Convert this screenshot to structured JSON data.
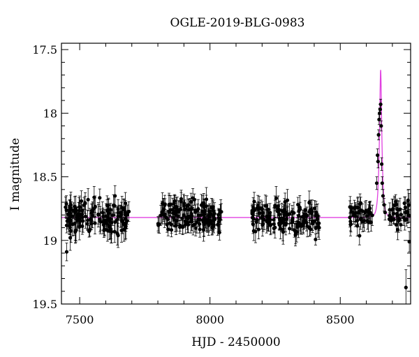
{
  "chart_data": {
    "type": "scatter",
    "title": "OGLE-2019-BLG-0983",
    "xlabel": "HJD - 2450000",
    "ylabel": "I magnitude",
    "xlim": [
      7430,
      8770
    ],
    "ylim": [
      19.5,
      17.45
    ],
    "y_inverted": true,
    "x_ticks": [
      7500,
      8000,
      8500
    ],
    "x_minor_step": 100,
    "y_ticks": [
      17.5,
      18,
      18.5,
      19,
      19.5
    ],
    "y_minor_step": 0.1,
    "grid": false,
    "colors": {
      "data": "#000000",
      "model": "#e040e0",
      "frame": "#000000"
    },
    "series": [
      {
        "kind": "photometry_with_errorbars",
        "seasons": [
          {
            "x_range": [
              7445,
              7690
            ],
            "mag_center": 18.82,
            "scatter": 0.12,
            "err": 0.07,
            "count": 150
          },
          {
            "x_range": [
              7800,
              8045
            ],
            "mag_center": 18.8,
            "scatter": 0.11,
            "err": 0.065,
            "count": 150
          },
          {
            "x_range": [
              8160,
              8420
            ],
            "mag_center": 18.82,
            "scatter": 0.11,
            "err": 0.065,
            "count": 150
          },
          {
            "x_range": [
              8530,
              8765
            ],
            "mag_center": 18.8,
            "scatter": 0.1,
            "err": 0.06,
            "count": 110
          }
        ],
        "peak_points": [
          {
            "x": 8640,
            "y": 18.55,
            "err": 0.05
          },
          {
            "x": 8643,
            "y": 18.33,
            "err": 0.05
          },
          {
            "x": 8645,
            "y": 18.38,
            "err": 0.05
          },
          {
            "x": 8647,
            "y": 18.17,
            "err": 0.04
          },
          {
            "x": 8649,
            "y": 18.05,
            "err": 0.04
          },
          {
            "x": 8651,
            "y": 18.0,
            "err": 0.04
          },
          {
            "x": 8653,
            "y": 17.97,
            "err": 0.04
          },
          {
            "x": 8655,
            "y": 17.93,
            "err": 0.04
          },
          {
            "x": 8657,
            "y": 18.1,
            "err": 0.04
          },
          {
            "x": 8659,
            "y": 18.4,
            "err": 0.05
          },
          {
            "x": 8661,
            "y": 18.55,
            "err": 0.05
          },
          {
            "x": 8664,
            "y": 18.65,
            "err": 0.05
          },
          {
            "x": 8668,
            "y": 18.72,
            "err": 0.05
          },
          {
            "x": 8672,
            "y": 18.78,
            "err": 0.06
          }
        ],
        "outliers": [
          {
            "x": 7450,
            "y": 19.09,
            "err": 0.07
          },
          {
            "x": 8752,
            "y": 19.37,
            "err": 0.14
          },
          {
            "x": 8765,
            "y": 19.01,
            "err": 0.08
          }
        ]
      },
      {
        "kind": "model_curve",
        "baseline": 18.82,
        "t0": 8655,
        "peak_mag": 17.66,
        "tE_days": 9
      }
    ]
  }
}
